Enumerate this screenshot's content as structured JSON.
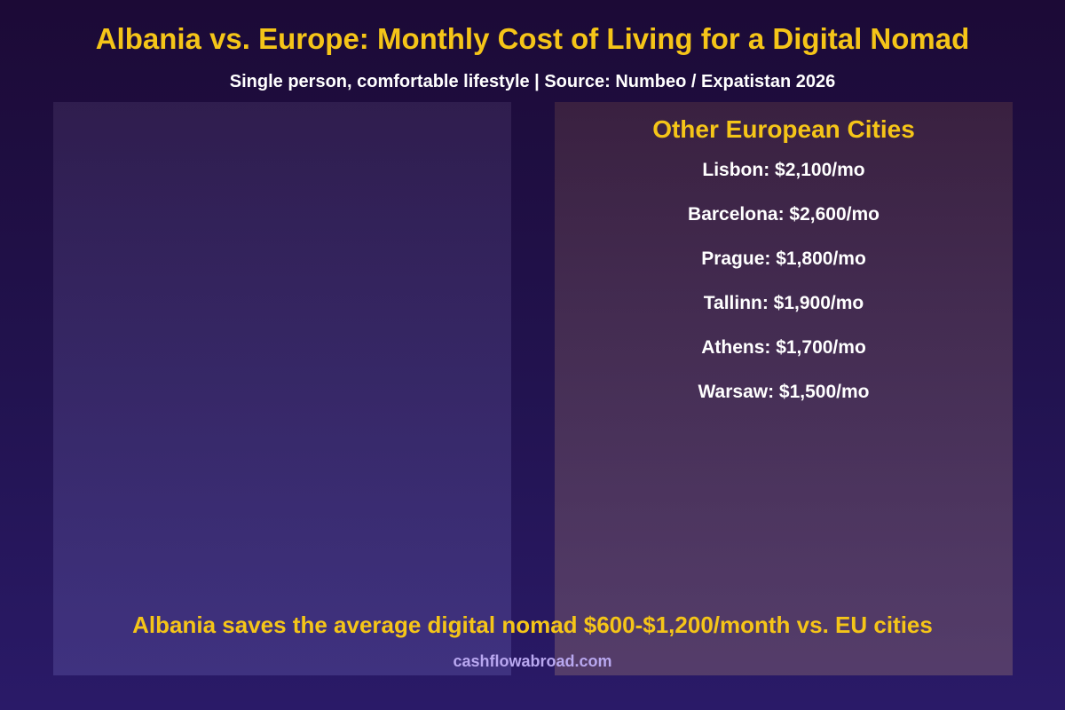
{
  "title": "Albania vs. Europe: Monthly Cost of Living for a Digital Nomad",
  "subtitle": "Single person, comfortable lifestyle | Source: Numbeo / Expatistan 2026",
  "right_panel": {
    "title": "Other European Cities",
    "items": [
      "Lisbon: $2,100/mo",
      "Barcelona: $2,600/mo",
      "Prague: $1,800/mo",
      "Tallinn: $1,900/mo",
      "Athens: $1,700/mo",
      "Warsaw: $1,500/mo"
    ]
  },
  "savings_note": "Albania saves the average digital nomad $600-$1,200/month vs. EU cities",
  "footer": "cashflowabroad.com",
  "colors": {
    "accent": "#f5c518",
    "text": "#ffffff",
    "footer": "#b9a8f0"
  },
  "chart_data": {
    "type": "table",
    "title": "Albania vs. Europe: Monthly Cost of Living for a Digital Nomad",
    "subtitle": "Single person, comfortable lifestyle | Source: Numbeo / Expatistan 2026",
    "series": [
      {
        "name": "Other European Cities",
        "categories": [
          "Lisbon",
          "Barcelona",
          "Prague",
          "Tallinn",
          "Athens",
          "Warsaw"
        ],
        "values": [
          2100,
          2600,
          1800,
          1900,
          1700,
          1500
        ]
      }
    ]
  }
}
